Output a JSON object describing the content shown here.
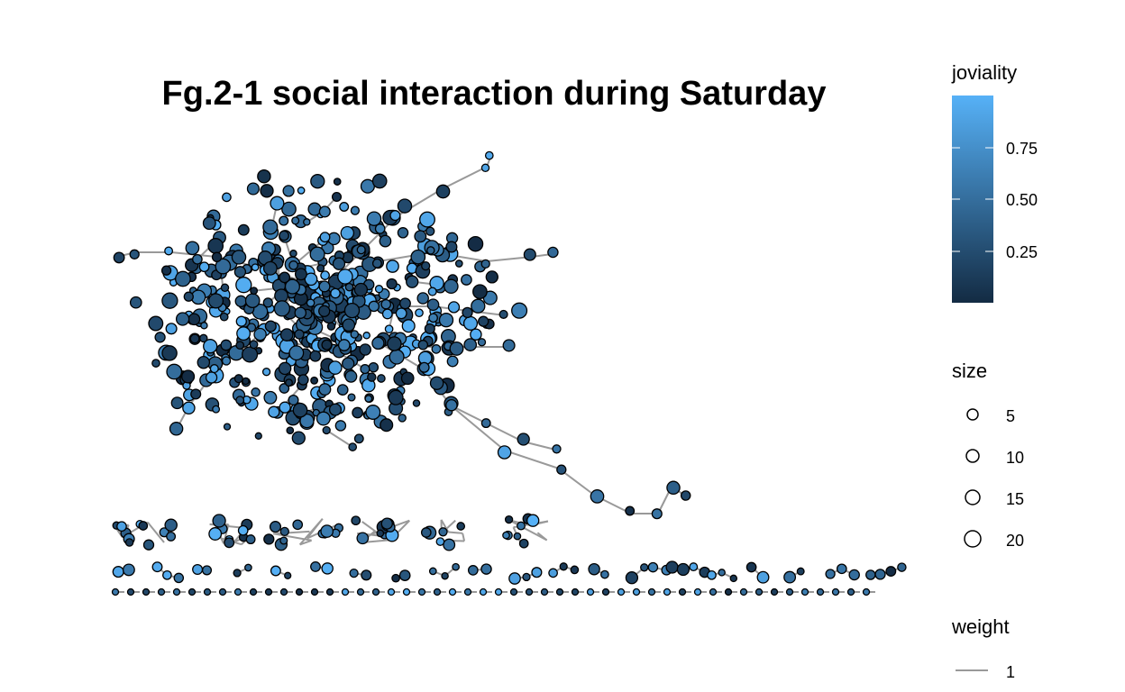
{
  "title": "Fg.2-1 social interaction during Saturday",
  "legend": {
    "joviality": {
      "title": "joviality",
      "ticks": [
        "0.75",
        "0.50",
        "0.25"
      ],
      "tick_values": [
        0.75,
        0.5,
        0.25
      ],
      "range": [
        0,
        1
      ],
      "color_low": "#132B43",
      "color_high": "#56B1F7"
    },
    "size": {
      "title": "size",
      "entries": [
        "5",
        "10",
        "15",
        "20"
      ]
    },
    "weight": {
      "title": "weight",
      "entries": [
        "1"
      ],
      "edge_color": "#999999"
    }
  },
  "colors": {
    "node_outline": "#000000",
    "edge": "#999999",
    "background": "#ffffff"
  }
}
